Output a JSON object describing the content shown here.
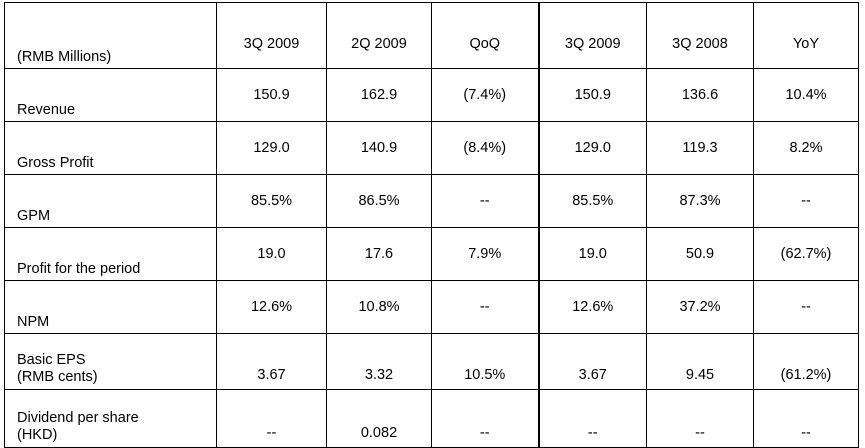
{
  "table": {
    "header": [
      "(RMB Millions)",
      "3Q 2009",
      "2Q 2009",
      "QoQ",
      "3Q 2009",
      "3Q 2008",
      "YoY"
    ],
    "rows": [
      {
        "label": [
          "Revenue"
        ],
        "values": [
          "150.9",
          "162.9",
          "(7.4%)",
          "150.9",
          "136.6",
          "10.4%"
        ]
      },
      {
        "label": [
          "Gross Profit"
        ],
        "values": [
          "129.0",
          "140.9",
          "(8.4%)",
          "129.0",
          "119.3",
          "8.2%"
        ]
      },
      {
        "label": [
          "GPM"
        ],
        "values": [
          "85.5%",
          "86.5%",
          "--",
          "85.5%",
          "87.3%",
          "--"
        ]
      },
      {
        "label": [
          "Profit for the period"
        ],
        "values": [
          "19.0",
          "17.6",
          "7.9%",
          "19.0",
          "50.9",
          "(62.7%)"
        ]
      },
      {
        "label": [
          "NPM"
        ],
        "values": [
          "12.6%",
          "10.8%",
          "--",
          "12.6%",
          "37.2%",
          "--"
        ]
      },
      {
        "label": [
          "Basic EPS",
          "(RMB cents)"
        ],
        "values": [
          "3.67",
          "3.32",
          "10.5%",
          "3.67",
          "9.45",
          "(61.2%)"
        ]
      },
      {
        "label": [
          "Dividend per share",
          "(HKD)"
        ],
        "values": [
          "--",
          "0.082",
          "--",
          "--",
          "--",
          "--"
        ]
      }
    ]
  }
}
